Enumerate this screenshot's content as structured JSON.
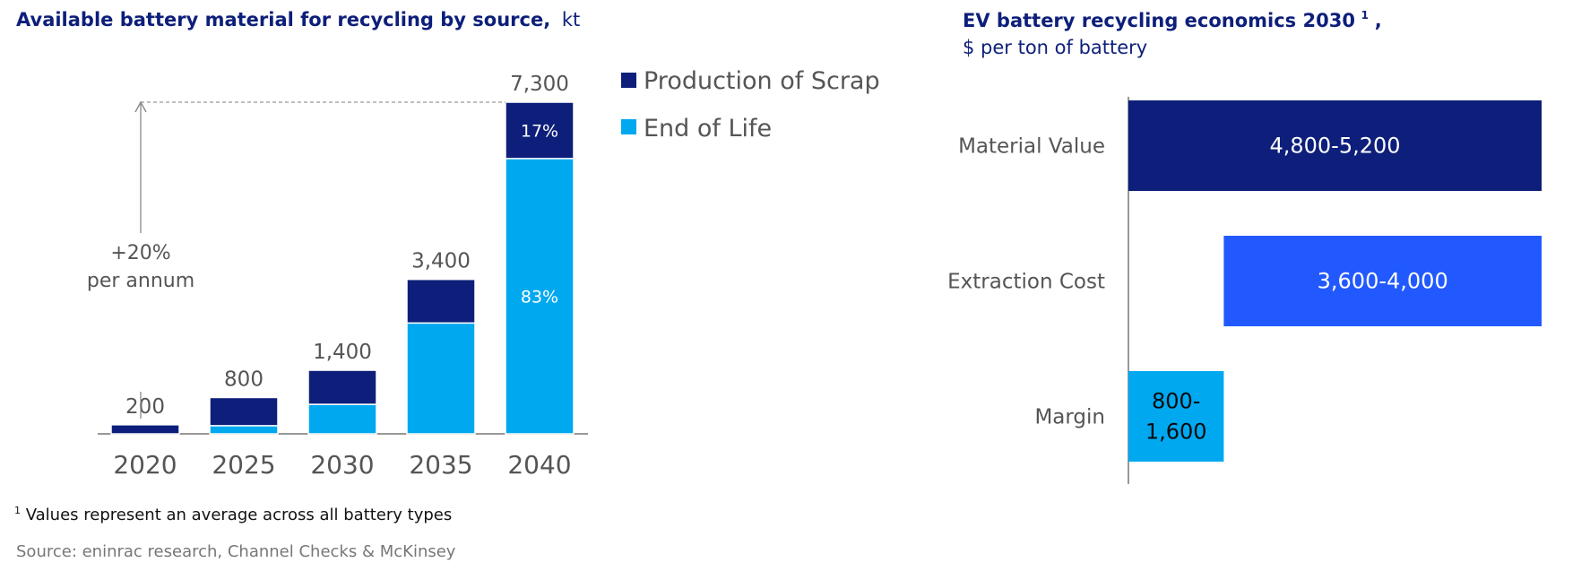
{
  "colors": {
    "navy": "#0d1f7a",
    "cyan": "#00a8f0",
    "blue": "#2259ff",
    "axis": "#777777"
  },
  "chart_data": [
    {
      "type": "bar",
      "stacked": true,
      "title": "Available battery material for recycling by source,",
      "title_unit": "kt",
      "categories": [
        "2020",
        "2025",
        "2030",
        "2035",
        "2040"
      ],
      "totals": [
        200,
        800,
        1400,
        3400,
        7300
      ],
      "total_labels": [
        "200",
        "800",
        "1,400",
        "3,400",
        "7,300"
      ],
      "series": [
        {
          "name": "End of Life",
          "values": [
            0,
            180,
            650,
            2440,
            6060
          ]
        },
        {
          "name": "Production of Scrap",
          "values": [
            200,
            620,
            750,
            960,
            1240
          ]
        }
      ],
      "segment_labels": {
        "2040": {
          "Production of Scrap": "17%",
          "End of Life": "83%"
        }
      },
      "annotation": [
        "+20%",
        "per annum"
      ],
      "legend": [
        "Production of Scrap",
        "End of Life"
      ],
      "legend_position": "right",
      "ylim": [
        0,
        7300
      ]
    },
    {
      "type": "bar",
      "orientation": "horizontal",
      "floating": true,
      "title": "EV battery recycling economics 2030",
      "title_sup": "1",
      "title_suffix": ",",
      "subtitle": "$ per ton of battery",
      "categories": [
        "Material Value",
        "Extraction Cost",
        "Margin"
      ],
      "ranges": [
        [
          0,
          5200
        ],
        [
          1200,
          5200
        ],
        [
          0,
          1200
        ]
      ],
      "range_labels": [
        [
          "4,800-5,200"
        ],
        [
          "3,600-4,000"
        ],
        [
          "800-",
          "1,600"
        ]
      ]
    }
  ],
  "footnote": {
    "sup": "1",
    "text": "Values represent an average across all battery types"
  },
  "source": "Source: eninrac research, Channel Checks & McKinsey"
}
